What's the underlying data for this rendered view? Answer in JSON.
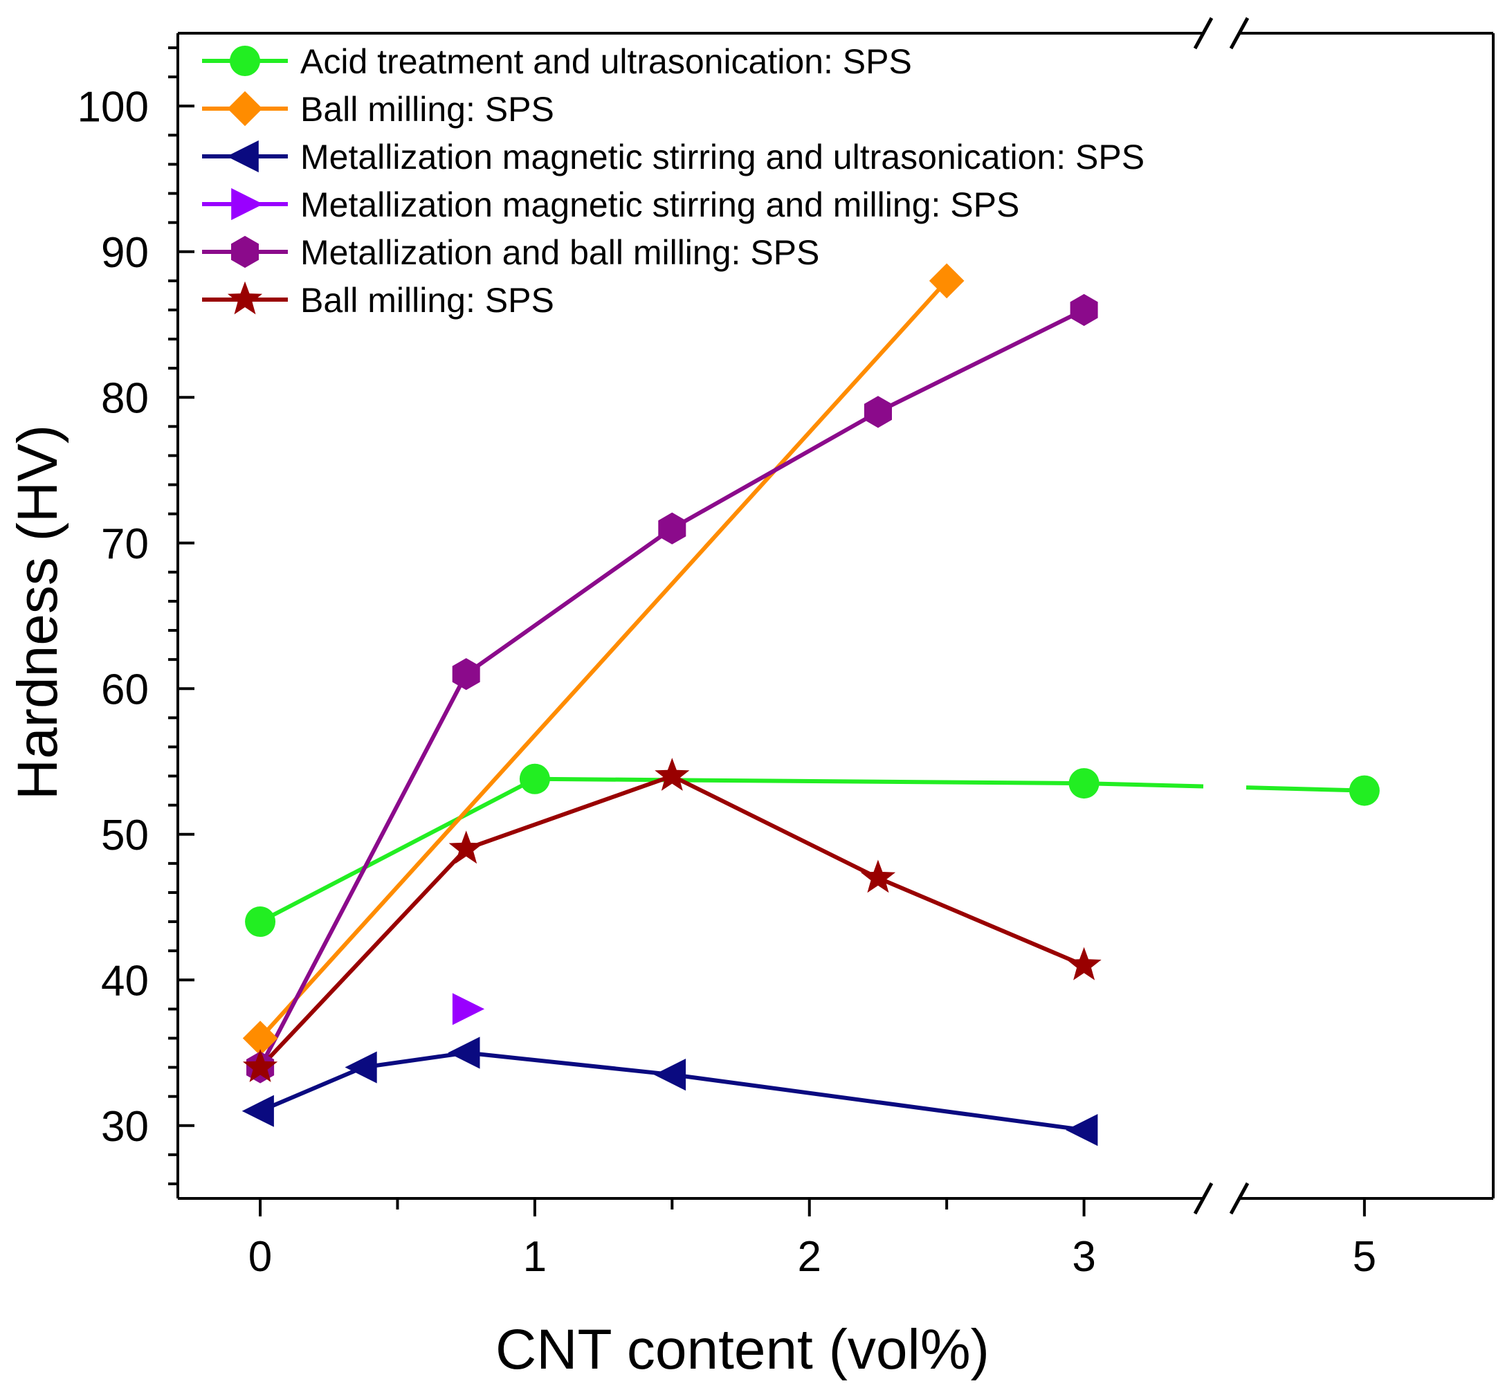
{
  "chart_data": {
    "type": "line",
    "xlabel": "CNT content (vol%)",
    "ylabel": "Hardness (HV)",
    "xlim": [
      -0.3,
      3.5
    ],
    "xlim_broken_segment": [
      4.5,
      5.45
    ],
    "axis_break_x": 3.5,
    "ylim": [
      25,
      105
    ],
    "x_ticks": [
      0,
      1,
      2,
      3,
      5
    ],
    "y_ticks": [
      30,
      40,
      50,
      60,
      70,
      80,
      90,
      100
    ],
    "grid": false,
    "legend_position": "top-left",
    "series": [
      {
        "name": "Acid treatment and ultrasonication: SPS",
        "color": "#22ee22",
        "marker": "circle",
        "x": [
          0,
          1,
          3,
          5
        ],
        "y": [
          44,
          53.8,
          53.5,
          53
        ]
      },
      {
        "name": "Ball milling: SPS",
        "color": "#ff8c00",
        "marker": "diamond",
        "x": [
          0,
          2.5
        ],
        "y": [
          36,
          88
        ]
      },
      {
        "name": "Metallization magnetic stirring and ultrasonication: SPS",
        "color": "#0a0a80",
        "marker": "triangle-left",
        "x": [
          0,
          0.375,
          0.75,
          1.5,
          3
        ],
        "y": [
          31,
          34,
          35,
          33.5,
          29.7
        ]
      },
      {
        "name": "Metallization magnetic stirring and milling: SPS",
        "color": "#9900ff",
        "marker": "triangle-right",
        "x": [
          0.75
        ],
        "y": [
          38
        ]
      },
      {
        "name": "Metallization and ball milling: SPS",
        "color": "#8b0a8b",
        "marker": "hexagon",
        "x": [
          0,
          0.75,
          1.5,
          2.25,
          3
        ],
        "y": [
          34,
          61,
          71,
          79,
          86
        ]
      },
      {
        "name": "Ball milling: SPS",
        "color": "#990000",
        "marker": "star",
        "x": [
          0,
          0.75,
          1.5,
          2.25,
          3
        ],
        "y": [
          34,
          49,
          54,
          47,
          41
        ]
      }
    ]
  }
}
